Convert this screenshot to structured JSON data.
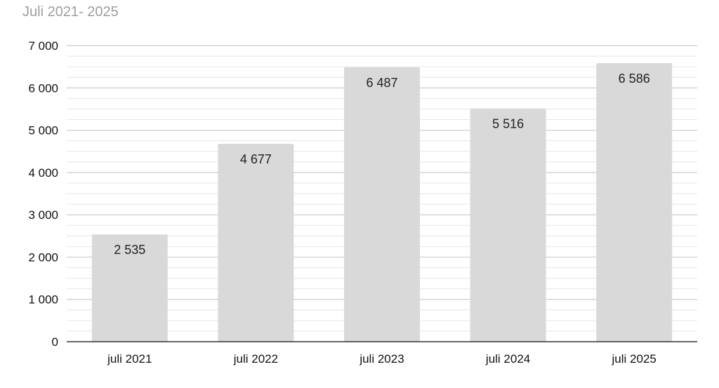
{
  "chart_data": {
    "type": "bar",
    "title": "Juli 2021- 2025",
    "xlabel": "",
    "ylabel": "",
    "categories": [
      "juli 2021",
      "juli 2022",
      "juli 2023",
      "juli 2024",
      "juli 2025"
    ],
    "values": [
      2535,
      4677,
      6487,
      5516,
      6586
    ],
    "value_labels": [
      "2 535",
      "4 677",
      "6 487",
      "5 516",
      "6 586"
    ],
    "ylim": [
      0,
      7000
    ],
    "yticks": [
      0,
      1000,
      2000,
      3000,
      4000,
      5000,
      6000,
      7000
    ],
    "ytick_labels": [
      "0",
      "1 000",
      "2 000",
      "3 000",
      "4 000",
      "5 000",
      "6 000",
      "7 000"
    ],
    "minor_gridlines_per_major": 4,
    "grid": true,
    "legend": "none",
    "colors": {
      "bar": "#d9d9d9",
      "major_grid": "#cccccc",
      "minor_grid": "#e6e6e6",
      "axis": "#333333",
      "title": "#9e9e9e"
    }
  }
}
